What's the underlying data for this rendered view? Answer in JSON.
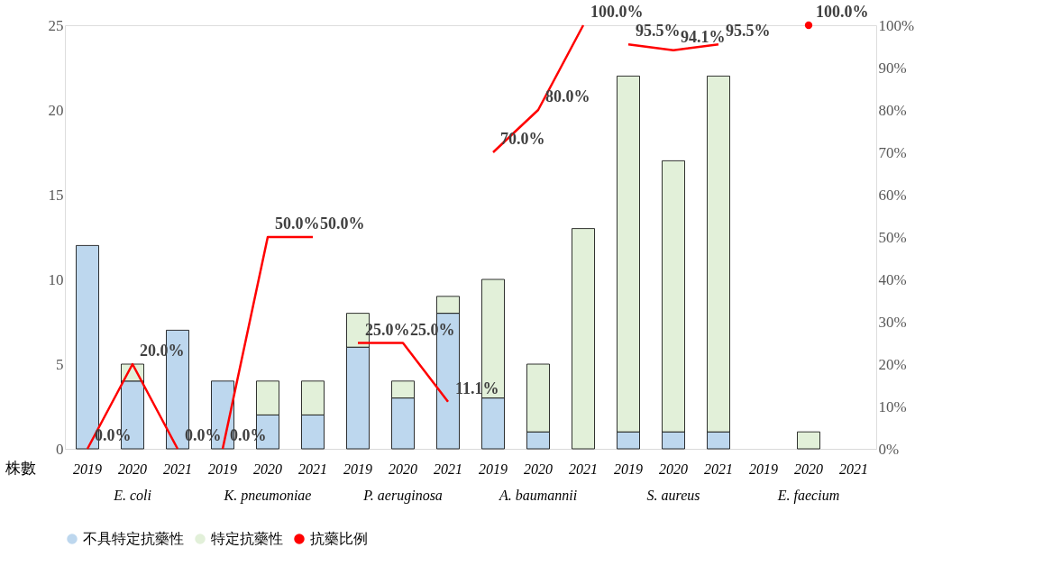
{
  "chart_data": {
    "type": "bar",
    "stacked": true,
    "legend": "bottom",
    "grid": false,
    "categories": [
      "2019",
      "2020",
      "2021",
      "2019",
      "2020",
      "2021",
      "2019",
      "2020",
      "2021",
      "2019",
      "2020",
      "2021",
      "2019",
      "2020",
      "2021",
      "2019",
      "2020",
      "2021"
    ],
    "ylabel": "株數",
    "ylim": [
      0,
      25
    ],
    "yticks": [
      0,
      5,
      10,
      15,
      20,
      25
    ],
    "y2lim": [
      0,
      100
    ],
    "y2ticks": [
      {
        "value": 0,
        "label": "0%"
      },
      {
        "value": 10,
        "label": "10%"
      },
      {
        "value": 20,
        "label": "20%"
      },
      {
        "value": 30,
        "label": "30%"
      },
      {
        "value": 40,
        "label": "40%"
      },
      {
        "value": 50,
        "label": "50%"
      },
      {
        "value": 60,
        "label": "60%"
      },
      {
        "value": 70,
        "label": "70%"
      },
      {
        "value": 80,
        "label": "80%"
      },
      {
        "value": 90,
        "label": "90%"
      },
      {
        "value": 100,
        "label": "100%"
      }
    ],
    "annotations": [
      "E. coli",
      "K. pneumoniae",
      "P. aeruginosa",
      "A. baumannii",
      "S. aureus",
      "E. faecium"
    ],
    "series": [
      {
        "name": "不具特定抗藥性",
        "color": "#bdd7ee",
        "values": [
          12,
          4,
          7,
          4,
          2,
          2,
          6,
          3,
          8,
          3,
          1,
          null,
          1,
          1,
          1,
          null,
          null,
          null
        ]
      },
      {
        "name": "特定抗藥性",
        "color": "#e2f0d9",
        "values": [
          null,
          1,
          null,
          null,
          2,
          2,
          2,
          1,
          1,
          7,
          4,
          13,
          21,
          16,
          21,
          null,
          1,
          null
        ]
      },
      {
        "name": "抗藥比例",
        "type": "line",
        "axis": "y2",
        "color": "#ff0000",
        "values": [
          0,
          20,
          0,
          0,
          50,
          50,
          25,
          25,
          11.1,
          70,
          80,
          100,
          95.5,
          94.1,
          95.5,
          null,
          100,
          null
        ],
        "value_labels": [
          "0.0%",
          "20.0%",
          "0.0%",
          "0.0%",
          "50.0%",
          "50.0%",
          "25.0%",
          "25.0%",
          "11.1%",
          "70.0%",
          "80.0%",
          "100.0%",
          "95.5%",
          "94.1%",
          "95.5%",
          null,
          "100.0%",
          null
        ]
      }
    ]
  }
}
